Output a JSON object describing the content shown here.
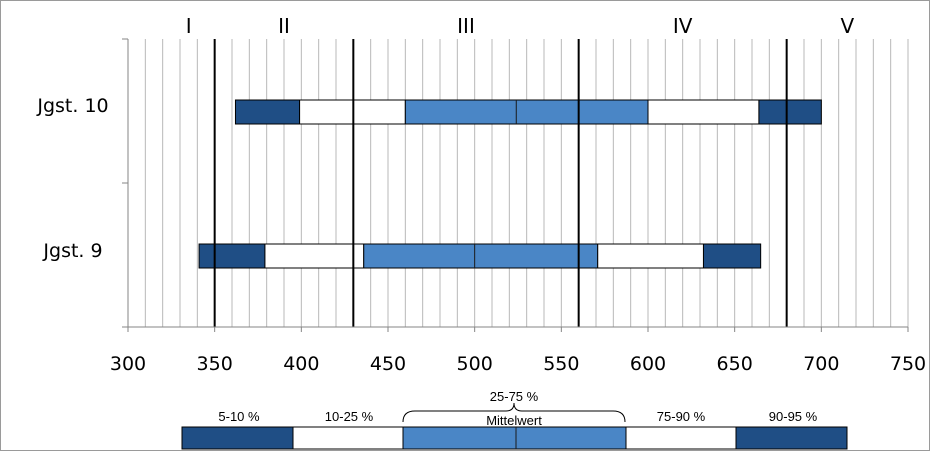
{
  "chart_data": {
    "type": "bar",
    "orientation": "horizontal",
    "x_axis": {
      "min": 300,
      "max": 750,
      "major_step": 50,
      "minor_step": 10,
      "tick_labels": [
        "300",
        "350",
        "400",
        "450",
        "500",
        "550",
        "600",
        "650",
        "700",
        "750"
      ]
    },
    "grid": true,
    "level_boundaries": [
      350,
      430,
      560,
      680
    ],
    "level_labels": [
      {
        "label": "I",
        "position": 335
      },
      {
        "label": "II",
        "position": 390
      },
      {
        "label": "III",
        "position": 495
      },
      {
        "label": "IV",
        "position": 620
      },
      {
        "label": "V",
        "position": 715
      }
    ],
    "categories": [
      "Jgst. 10",
      "Jgst. 9"
    ],
    "series": [
      {
        "category": "Jgst. 10",
        "p5": 362,
        "p10": 399,
        "p25": 460,
        "mean": 524,
        "p75": 600,
        "p90": 664,
        "p95": 700
      },
      {
        "category": "Jgst. 9",
        "p5": 341,
        "p10": 379,
        "p25": 436,
        "mean": 500,
        "p75": 571,
        "p90": 632,
        "p95": 665
      }
    ],
    "legend": {
      "segments": [
        {
          "label": "5-10 %",
          "color": "#1f4e85"
        },
        {
          "label": "10-25 %",
          "color": "#ffffff"
        },
        {
          "label": "25-75 %",
          "color": "#4a86c6",
          "note": "Mittelwert"
        },
        {
          "label": "75-90 %",
          "color": "#ffffff"
        },
        {
          "label": "90-95 %",
          "color": "#1f4e85"
        }
      ]
    },
    "colors": {
      "dark": "#1f4e85",
      "mid": "#4a86c6",
      "light": "#ffffff",
      "grid": "#b8b8b8",
      "axis": "#868686",
      "boundary": "#000000"
    }
  }
}
